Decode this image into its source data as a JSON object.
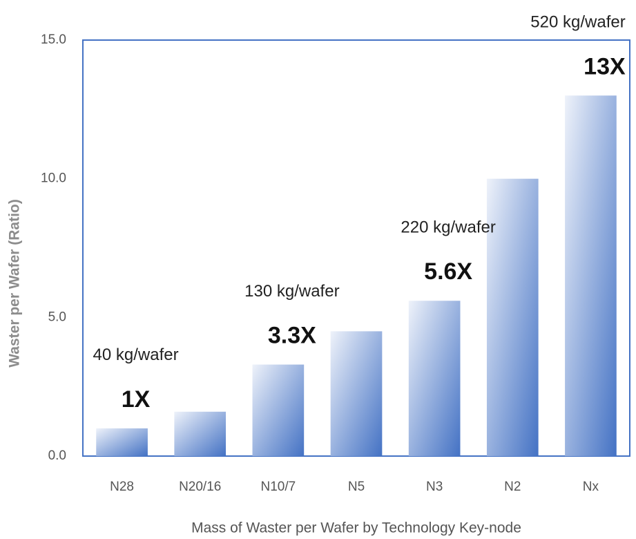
{
  "chart_data": {
    "type": "bar",
    "y_label": "Waster per Wafer (Ratio)",
    "x_label": "Mass of Waster per Wafer by Technology Key-node",
    "categories": [
      "N28",
      "N20/16",
      "N10/7",
      "N5",
      "N3",
      "N2",
      "Nx"
    ],
    "values": [
      1.0,
      1.6,
      3.3,
      4.5,
      5.6,
      10.0,
      13.0
    ],
    "value_labels": [
      "1X",
      null,
      "3.3X",
      null,
      "5.6X",
      null,
      "13X"
    ],
    "annotations": [
      {
        "category": "N28",
        "text": "40 kg/wafer"
      },
      {
        "category": "N10/7",
        "text": "130 kg/wafer"
      },
      {
        "category": "N3",
        "text": "220 kg/wafer"
      },
      {
        "category": "Nx",
        "text": "520 kg/wafer"
      }
    ],
    "color": "#4472c4",
    "ylim": [
      0,
      15
    ],
    "yticks": [
      {
        "value": 0,
        "label": "0.0"
      },
      {
        "value": 5,
        "label": "5.0"
      },
      {
        "value": 10,
        "label": "10.0"
      },
      {
        "value": 15,
        "label": "15.0"
      }
    ],
    "grid": false
  }
}
